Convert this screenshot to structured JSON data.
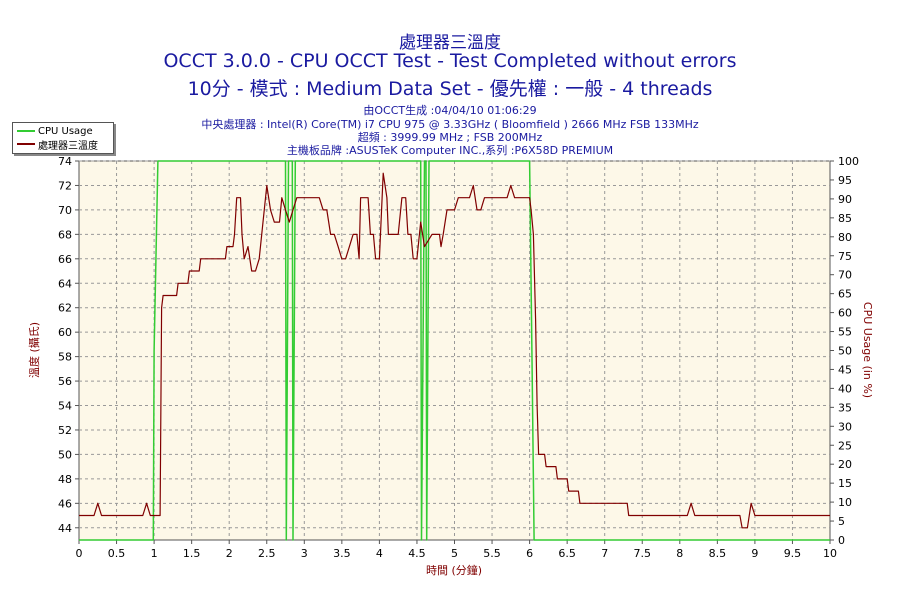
{
  "chart_data": {
    "type": "line",
    "title": "處理器三溫度",
    "subtitle_1": "OCCT 3.0.0 - CPU OCCT Test - Test Completed without errors",
    "subtitle_2": "10分 - 模式 : Medium Data Set - 優先權 : 一般 - 4 threads",
    "info_lines": [
      "由OCCT生成 :04/04/10 01:06:29",
      "中央處理器 : Intel(R) Core(TM) i7 CPU 975 @ 3.33GHz ( Bloomfield ) 2666 MHz FSB 133MHz",
      "超頻 : 3999.99 MHz ; FSB 200MHz",
      "主機板品牌 :ASUSTeK Computer INC.,系列 :P6X58D PREMIUM"
    ],
    "xlabel": "時間 (分鐘)",
    "ylabel_left": "溫度 (攝氏)",
    "ylabel_right": "CPU Usage (in %)",
    "xlim": [
      0,
      10
    ],
    "ylim_left": [
      43,
      74
    ],
    "ylim_right": [
      0,
      100
    ],
    "x_ticks": [
      "0",
      "0.5",
      "1",
      "1.5",
      "2",
      "2.5",
      "3",
      "3.5",
      "4",
      "4.5",
      "5",
      "5.5",
      "6",
      "6.5",
      "7",
      "7.5",
      "8",
      "8.5",
      "9",
      "9.5",
      "10"
    ],
    "y_ticks_left": [
      "44",
      "46",
      "48",
      "50",
      "52",
      "54",
      "56",
      "58",
      "60",
      "62",
      "64",
      "66",
      "68",
      "70",
      "72",
      "74"
    ],
    "y_ticks_right": [
      "0",
      "5",
      "10",
      "15",
      "20",
      "25",
      "30",
      "35",
      "40",
      "45",
      "50",
      "55",
      "60",
      "65",
      "70",
      "75",
      "80",
      "85",
      "90",
      "95",
      "100"
    ],
    "grid": true,
    "legend_position": "top-left",
    "series": [
      {
        "name": "CPU Usage",
        "axis": "right",
        "color": "#33cc33",
        "points": [
          [
            0,
            0
          ],
          [
            0.99,
            0
          ],
          [
            1.0,
            50
          ],
          [
            1.05,
            100
          ],
          [
            1.1,
            100
          ],
          [
            2.75,
            100
          ],
          [
            2.76,
            0
          ],
          [
            2.79,
            100
          ],
          [
            2.84,
            100
          ],
          [
            2.85,
            0
          ],
          [
            2.88,
            100
          ],
          [
            4.55,
            100
          ],
          [
            4.56,
            0
          ],
          [
            4.6,
            100
          ],
          [
            4.62,
            100
          ],
          [
            4.63,
            0
          ],
          [
            4.66,
            100
          ],
          [
            6.0,
            100
          ],
          [
            6.03,
            50
          ],
          [
            6.06,
            0
          ],
          [
            10,
            0
          ]
        ]
      },
      {
        "name": "處理器三溫度",
        "axis": "left",
        "color": "#800000",
        "points": [
          [
            0,
            45
          ],
          [
            0.2,
            45
          ],
          [
            0.25,
            46
          ],
          [
            0.3,
            45
          ],
          [
            0.85,
            45
          ],
          [
            0.9,
            46
          ],
          [
            0.95,
            45
          ],
          [
            1.08,
            45
          ],
          [
            1.1,
            62
          ],
          [
            1.12,
            63
          ],
          [
            1.3,
            63
          ],
          [
            1.32,
            64
          ],
          [
            1.45,
            64
          ],
          [
            1.47,
            65
          ],
          [
            1.6,
            65
          ],
          [
            1.62,
            66
          ],
          [
            1.95,
            66
          ],
          [
            1.97,
            67
          ],
          [
            2.05,
            67
          ],
          [
            2.07,
            68
          ],
          [
            2.1,
            71
          ],
          [
            2.15,
            71
          ],
          [
            2.17,
            68
          ],
          [
            2.2,
            66
          ],
          [
            2.25,
            67
          ],
          [
            2.3,
            65
          ],
          [
            2.35,
            65
          ],
          [
            2.4,
            66
          ],
          [
            2.45,
            69
          ],
          [
            2.5,
            72
          ],
          [
            2.55,
            70
          ],
          [
            2.6,
            69
          ],
          [
            2.67,
            69
          ],
          [
            2.7,
            71
          ],
          [
            2.75,
            70
          ],
          [
            2.8,
            69
          ],
          [
            2.85,
            70
          ],
          [
            2.9,
            71
          ],
          [
            3.2,
            71
          ],
          [
            3.25,
            70
          ],
          [
            3.3,
            70
          ],
          [
            3.35,
            68
          ],
          [
            3.4,
            68
          ],
          [
            3.45,
            67
          ],
          [
            3.5,
            66
          ],
          [
            3.55,
            66
          ],
          [
            3.6,
            67
          ],
          [
            3.65,
            68
          ],
          [
            3.7,
            68
          ],
          [
            3.73,
            66
          ],
          [
            3.75,
            71
          ],
          [
            3.85,
            71
          ],
          [
            3.88,
            68
          ],
          [
            3.92,
            68
          ],
          [
            3.95,
            66
          ],
          [
            4.0,
            66
          ],
          [
            4.05,
            73
          ],
          [
            4.1,
            71
          ],
          [
            4.12,
            68
          ],
          [
            4.25,
            68
          ],
          [
            4.3,
            71
          ],
          [
            4.35,
            71
          ],
          [
            4.38,
            68
          ],
          [
            4.42,
            68
          ],
          [
            4.45,
            66
          ],
          [
            4.5,
            66
          ],
          [
            4.55,
            69
          ],
          [
            4.6,
            67
          ],
          [
            4.7,
            68
          ],
          [
            4.8,
            68
          ],
          [
            4.82,
            67
          ],
          [
            4.85,
            68
          ],
          [
            4.9,
            70
          ],
          [
            5.0,
            70
          ],
          [
            5.05,
            71
          ],
          [
            5.2,
            71
          ],
          [
            5.25,
            72
          ],
          [
            5.3,
            70
          ],
          [
            5.35,
            70
          ],
          [
            5.4,
            71
          ],
          [
            5.7,
            71
          ],
          [
            5.75,
            72
          ],
          [
            5.8,
            71
          ],
          [
            6.0,
            71
          ],
          [
            6.02,
            70
          ],
          [
            6.05,
            68
          ],
          [
            6.08,
            61
          ],
          [
            6.1,
            54
          ],
          [
            6.12,
            50
          ],
          [
            6.2,
            50
          ],
          [
            6.22,
            49
          ],
          [
            6.35,
            49
          ],
          [
            6.37,
            48
          ],
          [
            6.5,
            48
          ],
          [
            6.52,
            47
          ],
          [
            6.65,
            47
          ],
          [
            6.67,
            46
          ],
          [
            7.3,
            46
          ],
          [
            7.32,
            45
          ],
          [
            8.1,
            45
          ],
          [
            8.15,
            46
          ],
          [
            8.2,
            45
          ],
          [
            8.8,
            45
          ],
          [
            8.83,
            44
          ],
          [
            8.9,
            44
          ],
          [
            8.95,
            46
          ],
          [
            9.0,
            45
          ],
          [
            10,
            45
          ]
        ]
      }
    ]
  }
}
